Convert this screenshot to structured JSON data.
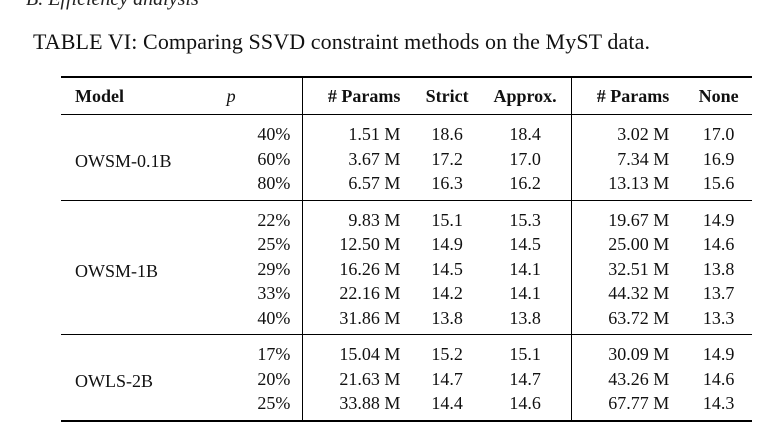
{
  "section_heading": "B. Efficiency analysis",
  "caption": "TABLE VI: Comparing SSVD constraint methods on the MyST data.",
  "headers": {
    "model": "Model",
    "p": "p",
    "params_a": "# Params",
    "strict": "Strict",
    "approx": "Approx.",
    "params_b": "# Params",
    "none": "None"
  },
  "groups": [
    {
      "model": "OWSM-0.1B",
      "rows": [
        {
          "p": "40%",
          "params_a": "1.51 M",
          "strict": "18.6",
          "approx": "18.4",
          "params_b": "3.02 M",
          "none": "17.0"
        },
        {
          "p": "60%",
          "params_a": "3.67 M",
          "strict": "17.2",
          "approx": "17.0",
          "params_b": "7.34 M",
          "none": "16.9"
        },
        {
          "p": "80%",
          "params_a": "6.57 M",
          "strict": "16.3",
          "approx": "16.2",
          "params_b": "13.13 M",
          "none": "15.6"
        }
      ]
    },
    {
      "model": "OWSM-1B",
      "rows": [
        {
          "p": "22%",
          "params_a": "9.83 M",
          "strict": "15.1",
          "approx": "15.3",
          "params_b": "19.67 M",
          "none": "14.9"
        },
        {
          "p": "25%",
          "params_a": "12.50 M",
          "strict": "14.9",
          "approx": "14.5",
          "params_b": "25.00 M",
          "none": "14.6"
        },
        {
          "p": "29%",
          "params_a": "16.26 M",
          "strict": "14.5",
          "approx": "14.1",
          "params_b": "32.51 M",
          "none": "13.8"
        },
        {
          "p": "33%",
          "params_a": "22.16 M",
          "strict": "14.2",
          "approx": "14.1",
          "params_b": "44.32 M",
          "none": "13.7"
        },
        {
          "p": "40%",
          "params_a": "31.86 M",
          "strict": "13.8",
          "approx": "13.8",
          "params_b": "63.72 M",
          "none": "13.3"
        }
      ]
    },
    {
      "model": "OWLS-2B",
      "rows": [
        {
          "p": "17%",
          "params_a": "15.04 M",
          "strict": "15.2",
          "approx": "15.1",
          "params_b": "30.09 M",
          "none": "14.9"
        },
        {
          "p": "20%",
          "params_a": "21.63 M",
          "strict": "14.7",
          "approx": "14.7",
          "params_b": "43.26 M",
          "none": "14.6"
        },
        {
          "p": "25%",
          "params_a": "33.88 M",
          "strict": "14.4",
          "approx": "14.6",
          "params_b": "67.77 M",
          "none": "14.3"
        }
      ]
    }
  ]
}
